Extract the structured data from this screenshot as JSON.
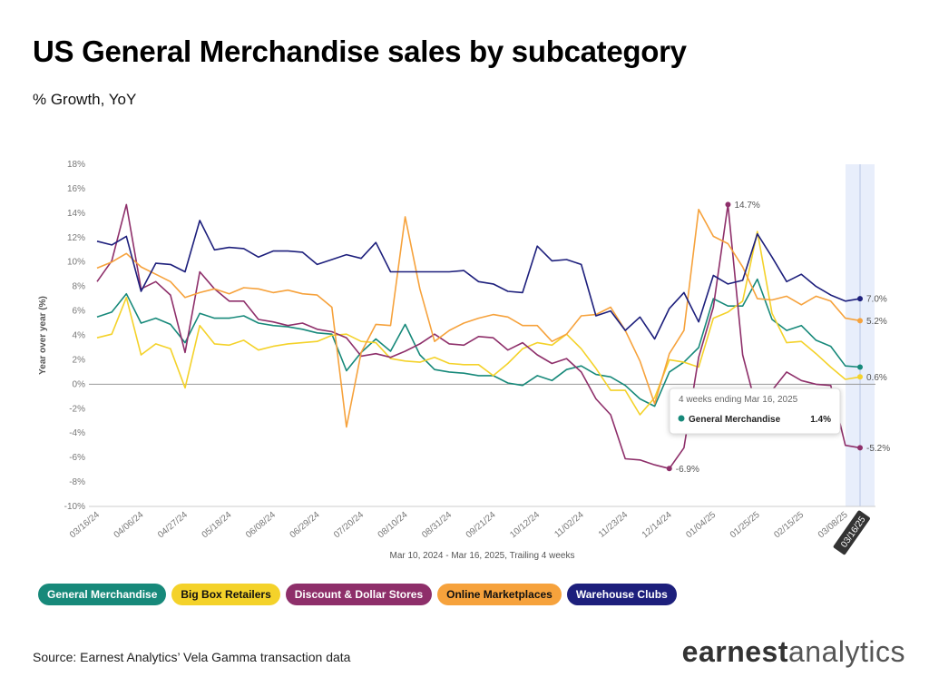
{
  "chart_data": {
    "type": "line",
    "title": "US General Merchandise sales by subcategory",
    "subtitle": "% Growth, YoY",
    "y_label": "Year over year (%)",
    "x_label": "Mar 10, 2024 - Mar 16, 2025, Trailing 4 weeks",
    "source": "Source: Earnest Analytics’ Vela Gamma transaction data",
    "logo": [
      "earnest",
      "analytics"
    ],
    "categories": [
      "03/16/24",
      null,
      null,
      "04/06/24",
      null,
      null,
      "04/27/24",
      null,
      null,
      "05/18/24",
      null,
      null,
      "06/08/24",
      null,
      null,
      "06/29/24",
      null,
      null,
      "07/20/24",
      null,
      null,
      "08/10/24",
      null,
      null,
      "08/31/24",
      null,
      null,
      "09/21/24",
      null,
      null,
      "10/12/24",
      null,
      null,
      "11/02/24",
      null,
      null,
      "11/23/24",
      null,
      null,
      "12/14/24",
      null,
      null,
      "01/04/25",
      null,
      null,
      "01/25/25",
      null,
      null,
      "02/15/25",
      null,
      null,
      "03/08/25",
      "03/16/25"
    ],
    "highlight_category": "03/16/25",
    "ylim": [
      -10,
      18
    ],
    "yticks": [
      {
        "value": -10,
        "label": "-10%"
      },
      {
        "value": -8,
        "label": "-8%"
      },
      {
        "value": -6,
        "label": "-6%"
      },
      {
        "value": -4,
        "label": "-4%"
      },
      {
        "value": -2,
        "label": "-2%"
      },
      {
        "value": 0,
        "label": "0%"
      },
      {
        "value": 2,
        "label": "2%"
      },
      {
        "value": 4,
        "label": "4%"
      },
      {
        "value": 6,
        "label": "6%"
      },
      {
        "value": 8,
        "label": "8%"
      },
      {
        "value": 10,
        "label": "10%"
      },
      {
        "value": 12,
        "label": "12%"
      },
      {
        "value": 14,
        "label": "14%"
      },
      {
        "value": 16,
        "label": "16%"
      },
      {
        "value": 18,
        "label": "18%"
      }
    ],
    "grid": false,
    "series": [
      {
        "name": "General Merchandise",
        "color": "#17897a",
        "values": [
          5.5,
          5.9,
          7.4,
          5.0,
          5.4,
          4.9,
          3.4,
          5.8,
          5.4,
          5.4,
          5.6,
          5.0,
          4.8,
          4.7,
          4.5,
          4.2,
          4.1,
          1.1,
          2.6,
          3.7,
          2.7,
          4.9,
          2.4,
          1.2,
          1.0,
          0.9,
          0.7,
          0.7,
          0.1,
          -0.1,
          0.7,
          0.3,
          1.2,
          1.5,
          0.8,
          0.6,
          -0.1,
          -1.2,
          -1.8,
          1.0,
          1.8,
          3.0,
          7.0,
          6.4,
          6.4,
          8.6,
          5.3,
          4.4,
          4.8,
          3.6,
          3.1,
          1.5,
          1.4
        ]
      },
      {
        "name": "Big Box Retailers",
        "color": "#f4d22a",
        "values": [
          3.8,
          4.1,
          7.1,
          2.4,
          3.3,
          2.9,
          -0.3,
          4.8,
          3.3,
          3.2,
          3.6,
          2.8,
          3.1,
          3.3,
          3.4,
          3.5,
          4.0,
          4.1,
          3.5,
          3.4,
          2.1,
          1.9,
          1.8,
          2.2,
          1.7,
          1.6,
          1.6,
          0.7,
          1.7,
          2.9,
          3.4,
          3.2,
          4.1,
          2.9,
          1.3,
          -0.5,
          -0.5,
          -2.5,
          -1.1,
          2.0,
          1.8,
          1.4,
          5.4,
          5.9,
          6.8,
          12.5,
          5.8,
          3.4,
          3.5,
          2.5,
          1.4,
          0.4,
          0.6
        ],
        "value_labels": {
          "52": "0.6%"
        }
      },
      {
        "name": "Discount & Dollar Stores",
        "color": "#8e2f6a",
        "values": [
          8.4,
          10.1,
          14.7,
          7.8,
          8.4,
          7.3,
          2.6,
          9.2,
          7.8,
          6.8,
          6.8,
          5.3,
          5.1,
          4.8,
          5.0,
          4.5,
          4.3,
          3.8,
          2.3,
          2.5,
          2.2,
          2.7,
          3.3,
          4.1,
          3.3,
          3.2,
          3.9,
          3.8,
          2.8,
          3.4,
          2.4,
          1.7,
          2.1,
          1.0,
          -1.2,
          -2.5,
          -6.1,
          -6.2,
          -6.6,
          -6.9,
          -5.2,
          2.2,
          6.3,
          14.7,
          2.4,
          -2.2,
          -0.5,
          1.0,
          0.3,
          0.0,
          -0.1,
          -5.0,
          -5.2
        ],
        "value_labels": {
          "39": "-6.9%",
          "43": "14.7%",
          "52": "-5.2%"
        }
      },
      {
        "name": "Online Marketplaces",
        "color": "#f6a23c",
        "values": [
          9.5,
          10.0,
          10.7,
          9.6,
          9.0,
          8.4,
          7.1,
          7.5,
          7.8,
          7.4,
          7.9,
          7.8,
          7.5,
          7.7,
          7.4,
          7.3,
          6.3,
          -3.5,
          2.6,
          4.9,
          4.8,
          13.7,
          7.8,
          3.5,
          4.4,
          5.0,
          5.4,
          5.7,
          5.5,
          4.8,
          4.8,
          3.5,
          4.1,
          5.6,
          5.7,
          6.3,
          4.4,
          1.9,
          -1.6,
          2.5,
          4.4,
          14.3,
          12.1,
          11.5,
          9.6,
          7.0,
          6.9,
          7.2,
          6.5,
          7.2,
          6.8,
          5.4,
          5.2
        ],
        "value_labels": {
          "52": "5.2%"
        }
      },
      {
        "name": "Warehouse Clubs",
        "color": "#1d1f7c",
        "values": [
          11.7,
          11.4,
          12.1,
          7.6,
          9.9,
          9.8,
          9.2,
          13.4,
          11.0,
          11.2,
          11.1,
          10.4,
          10.9,
          10.9,
          10.8,
          9.8,
          10.2,
          10.6,
          10.3,
          11.6,
          9.2,
          9.2,
          9.2,
          9.2,
          9.2,
          9.3,
          8.4,
          8.2,
          7.6,
          7.5,
          11.3,
          10.1,
          10.2,
          9.8,
          5.6,
          6.0,
          4.4,
          5.5,
          3.7,
          6.2,
          7.5,
          5.1,
          8.9,
          8.2,
          8.5,
          12.3,
          10.4,
          8.4,
          9.0,
          8.0,
          7.3,
          6.8,
          7.0
        ],
        "value_labels": {
          "52": "7.0%"
        }
      }
    ],
    "tooltip": {
      "title": "4 weeks ending Mar 16, 2025",
      "series": "General Merchandise",
      "value": 1.4,
      "label": "1.4%"
    }
  }
}
